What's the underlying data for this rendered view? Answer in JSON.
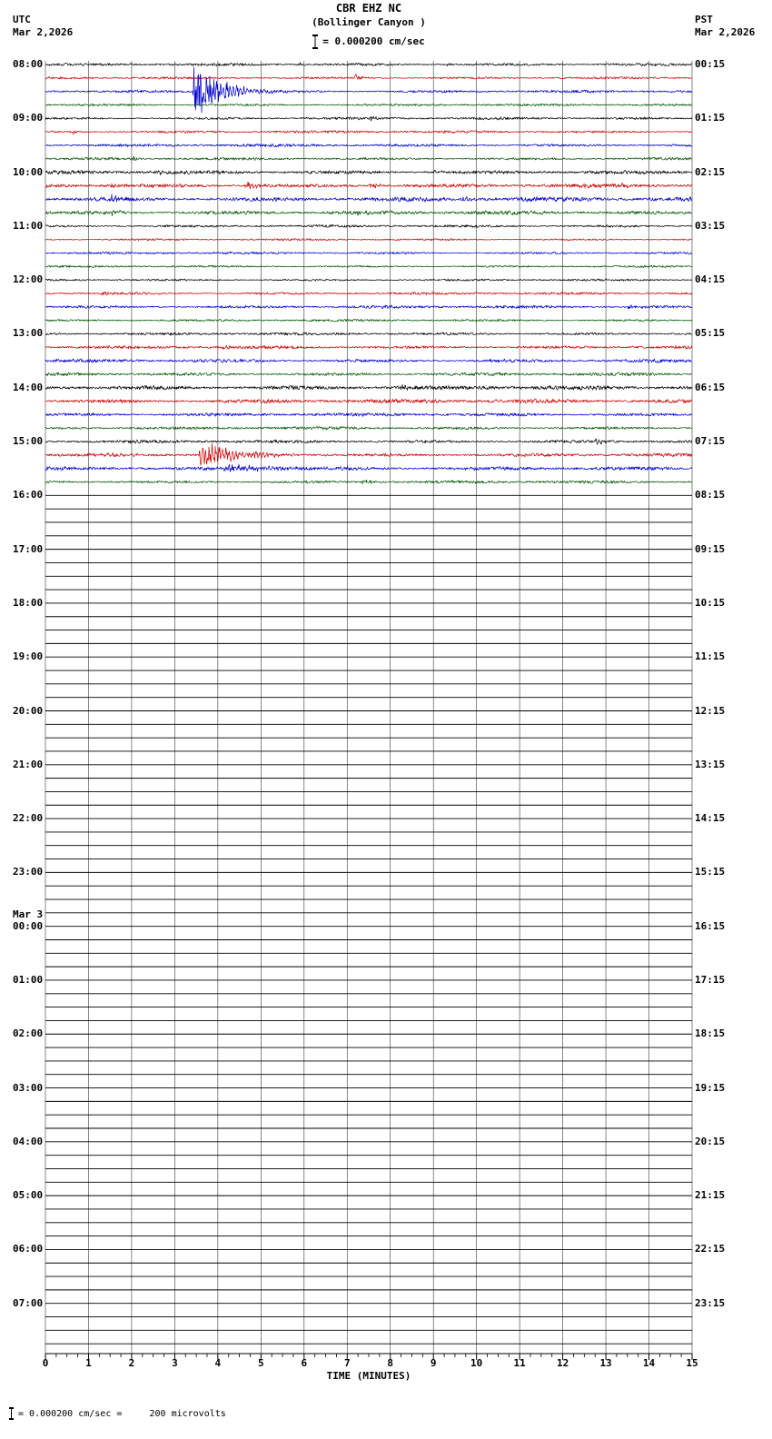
{
  "header": {
    "title": "CBR EHZ NC",
    "subtitle": "(Bollinger Canyon )",
    "scale_label": "= 0.000200 cm/sec",
    "left_tz": "UTC",
    "left_date": "Mar 2,2026",
    "right_tz": "PST",
    "right_date": "Mar 2,2026"
  },
  "x_axis": {
    "label": "TIME (MINUTES)",
    "ticks": [
      0,
      1,
      2,
      3,
      4,
      5,
      6,
      7,
      8,
      9,
      10,
      11,
      12,
      13,
      14,
      15
    ]
  },
  "footer": {
    "note": "= 0.000200 cm/sec =     200 microvolts"
  },
  "chart_data": {
    "type": "line",
    "variant": "helicorder-seismogram",
    "minutes_per_line": 15,
    "x_range_minutes": [
      0,
      15
    ],
    "grid": true,
    "trace_colors": {
      "black": "#000000",
      "red": "#cc0000",
      "blue": "#0000cc",
      "green": "#005500"
    },
    "flat_color": "#000000",
    "hours": [
      {
        "utc": "08:00",
        "pst": "00:15",
        "active": true,
        "traces": [
          {
            "color": "black",
            "amp": 1.3,
            "events": [
              {
                "t": 5.85,
                "amp": 3,
                "tau": 0.08
              },
              {
                "t": 9.3,
                "amp": 2.5,
                "tau": 0.08
              }
            ]
          },
          {
            "color": "red",
            "amp": 1.1,
            "events": [
              {
                "t": 7.15,
                "amp": 4.5,
                "tau": 0.15
              }
            ]
          },
          {
            "color": "blue",
            "amp": 1.3,
            "clip_up": 40,
            "clip_dn": 92,
            "events": [
              {
                "t": 3.42,
                "amp": 60,
                "tau": 0.14
              },
              {
                "t": 3.55,
                "amp": 22,
                "tau": 0.5
              },
              {
                "t": 3.7,
                "amp": 6,
                "tau": 0.8
              }
            ]
          },
          {
            "color": "green",
            "amp": 1.1,
            "events": []
          }
        ]
      },
      {
        "utc": "09:00",
        "pst": "01:15",
        "active": true,
        "traces": [
          {
            "color": "black",
            "amp": 1.2,
            "events": [
              {
                "t": 7.5,
                "amp": 3,
                "tau": 0.1
              }
            ]
          },
          {
            "color": "red",
            "amp": 1.2,
            "events": [
              {
                "t": 0.6,
                "amp": 3,
                "tau": 0.12
              }
            ]
          },
          {
            "color": "blue",
            "amp": 1.4,
            "events": []
          },
          {
            "color": "green",
            "amp": 1.3,
            "events": [
              {
                "t": 2.0,
                "amp": 2.5,
                "tau": 0.15
              }
            ]
          }
        ]
      },
      {
        "utc": "10:00",
        "pst": "02:15",
        "active": true,
        "traces": [
          {
            "color": "black",
            "amp": 1.8,
            "events": [
              {
                "t": 2.6,
                "amp": 3,
                "tau": 0.15
              },
              {
                "t": 9.0,
                "amp": 2.5,
                "tau": 0.1
              }
            ]
          },
          {
            "color": "red",
            "amp": 1.9,
            "events": [
              {
                "t": 1.5,
                "amp": 3.5,
                "tau": 0.15
              },
              {
                "t": 4.6,
                "amp": 5,
                "tau": 0.25
              },
              {
                "t": 7.5,
                "amp": 4,
                "tau": 0.2
              },
              {
                "t": 13.2,
                "amp": 4,
                "tau": 0.2
              }
            ]
          },
          {
            "color": "blue",
            "amp": 2.2,
            "events": [
              {
                "t": 1.45,
                "amp": 5,
                "tau": 0.3
              },
              {
                "t": 5.0,
                "amp": 3,
                "tau": 0.3
              },
              {
                "t": 9.6,
                "amp": 3,
                "tau": 0.2
              }
            ]
          },
          {
            "color": "green",
            "amp": 1.8,
            "events": [
              {
                "t": 1.5,
                "amp": 3,
                "tau": 0.2
              },
              {
                "t": 7.2,
                "amp": 3,
                "tau": 0.2
              }
            ]
          }
        ]
      },
      {
        "utc": "11:00",
        "pst": "03:15",
        "active": true,
        "traces": [
          {
            "color": "black",
            "amp": 1.2,
            "events": []
          },
          {
            "color": "red",
            "amp": 1.0,
            "events": []
          },
          {
            "color": "blue",
            "amp": 1.1,
            "events": []
          },
          {
            "color": "green",
            "amp": 1.0,
            "events": []
          }
        ]
      },
      {
        "utc": "12:00",
        "pst": "04:15",
        "active": true,
        "traces": [
          {
            "color": "black",
            "amp": 1.0,
            "events": []
          },
          {
            "color": "red",
            "amp": 1.2,
            "events": [
              {
                "t": 1.3,
                "amp": 3,
                "tau": 0.15
              }
            ]
          },
          {
            "color": "blue",
            "amp": 1.4,
            "events": [
              {
                "t": 13.5,
                "amp": 3,
                "tau": 0.2
              }
            ]
          },
          {
            "color": "green",
            "amp": 1.1,
            "events": []
          }
        ]
      },
      {
        "utc": "13:00",
        "pst": "05:15",
        "active": true,
        "traces": [
          {
            "color": "black",
            "amp": 1.3,
            "events": []
          },
          {
            "color": "red",
            "amp": 1.5,
            "events": [
              {
                "t": 4.1,
                "amp": 3,
                "tau": 0.15
              }
            ]
          },
          {
            "color": "blue",
            "amp": 1.6,
            "events": [
              {
                "t": 10.3,
                "amp": 3,
                "tau": 0.15
              }
            ]
          },
          {
            "color": "green",
            "amp": 1.5,
            "events": []
          }
        ]
      },
      {
        "utc": "14:00",
        "pst": "06:15",
        "active": true,
        "traces": [
          {
            "color": "black",
            "amp": 2.1,
            "events": [
              {
                "t": 8.2,
                "amp": 3,
                "tau": 0.2
              }
            ]
          },
          {
            "color": "red",
            "amp": 2.0,
            "events": []
          },
          {
            "color": "blue",
            "amp": 1.6,
            "events": []
          },
          {
            "color": "green",
            "amp": 1.4,
            "events": []
          }
        ]
      },
      {
        "utc": "15:00",
        "pst": "07:15",
        "active": true,
        "traces": [
          {
            "color": "black",
            "amp": 1.5,
            "events": [
              {
                "t": 12.75,
                "amp": 4.5,
                "tau": 0.2
              }
            ]
          },
          {
            "color": "red",
            "amp": 1.6,
            "clip_up": 18,
            "clip_dn": 18,
            "events": [
              {
                "t": 3.55,
                "amp": 14,
                "tau": 0.45
              },
              {
                "t": 3.7,
                "amp": 6,
                "tau": 1.0
              }
            ]
          },
          {
            "color": "blue",
            "amp": 1.7,
            "events": [
              {
                "t": 4.1,
                "amp": 3.5,
                "tau": 2.0
              }
            ]
          },
          {
            "color": "green",
            "amp": 1.3,
            "events": [
              {
                "t": 7.3,
                "amp": 3,
                "tau": 0.3
              }
            ]
          }
        ]
      },
      {
        "utc": "16:00",
        "pst": "08:15",
        "active": false
      },
      {
        "utc": "17:00",
        "pst": "09:15",
        "active": false
      },
      {
        "utc": "18:00",
        "pst": "10:15",
        "active": false
      },
      {
        "utc": "19:00",
        "pst": "11:15",
        "active": false
      },
      {
        "utc": "20:00",
        "pst": "12:15",
        "active": false
      },
      {
        "utc": "21:00",
        "pst": "13:15",
        "active": false
      },
      {
        "utc": "22:00",
        "pst": "14:15",
        "active": false
      },
      {
        "utc": "23:00",
        "pst": "15:15",
        "active": false
      },
      {
        "utc": "00:00",
        "pst": "16:15",
        "active": false,
        "date_above": "Mar 3"
      },
      {
        "utc": "01:00",
        "pst": "17:15",
        "active": false
      },
      {
        "utc": "02:00",
        "pst": "18:15",
        "active": false
      },
      {
        "utc": "03:00",
        "pst": "19:15",
        "active": false
      },
      {
        "utc": "04:00",
        "pst": "20:15",
        "active": false
      },
      {
        "utc": "05:00",
        "pst": "21:15",
        "active": false
      },
      {
        "utc": "06:00",
        "pst": "22:15",
        "active": false
      },
      {
        "utc": "07:00",
        "pst": "23:15",
        "active": false
      }
    ]
  }
}
